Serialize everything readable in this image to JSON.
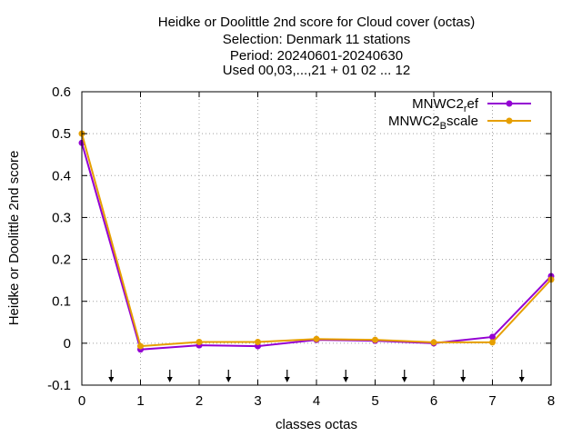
{
  "chart_data": {
    "type": "line",
    "title_lines": [
      "Heidke or Doolittle 2nd score  for Cloud cover (octas)",
      "Selection: Denmark     11 stations",
      "Period: 20240601-20240630",
      "Used 00,03,...,21 + 01 02 ... 12"
    ],
    "xlabel": "classes octas",
    "ylabel": "Heidke or Doolittle 2nd score",
    "xlim": [
      0,
      8
    ],
    "ylim": [
      -0.1,
      0.6
    ],
    "x_ticks": [
      0,
      1,
      2,
      3,
      4,
      5,
      6,
      7,
      8
    ],
    "y_ticks": [
      -0.1,
      0,
      0.1,
      0.2,
      0.3,
      0.4,
      0.5,
      0.6
    ],
    "x_tick_labels": [
      "0",
      "1",
      "2",
      "3",
      "4",
      "5",
      "6",
      "7",
      "8"
    ],
    "y_tick_labels": [
      "-0.1",
      "0",
      "0.1",
      "0.2",
      "0.3",
      "0.4",
      "0.5",
      "0.6"
    ],
    "grid": true,
    "legend_position": "top-right",
    "class_boundary_arrows_x": [
      0.5,
      1.5,
      2.5,
      3.5,
      4.5,
      5.5,
      6.5,
      7.5
    ],
    "series": [
      {
        "name_main": "MNWC2",
        "name_sub": "r",
        "name_tail": "ef",
        "color": "#9400d3",
        "x": [
          0,
          1,
          2,
          3,
          4,
          5,
          6,
          7,
          8
        ],
        "y": [
          0.478,
          -0.015,
          -0.005,
          -0.007,
          0.008,
          0.006,
          0.0,
          0.015,
          0.16
        ]
      },
      {
        "name_main": "MNWC2",
        "name_sub": "B",
        "name_tail": "scale",
        "color": "#e69f00",
        "x": [
          0,
          1,
          2,
          3,
          4,
          5,
          6,
          7,
          8
        ],
        "y": [
          0.5,
          -0.007,
          0.003,
          0.003,
          0.01,
          0.008,
          0.002,
          0.002,
          0.152
        ]
      }
    ]
  }
}
